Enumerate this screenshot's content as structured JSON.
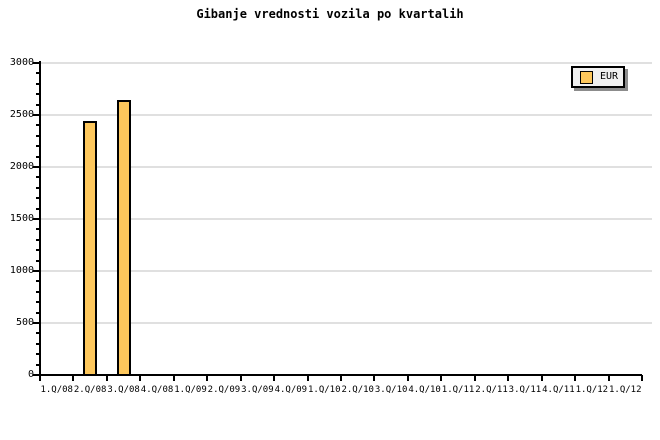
{
  "chart_data": {
    "type": "bar",
    "title": "Gibanje vrednosti vozila po kvartalih",
    "categories": [
      "1.Q/08",
      "2.Q/08",
      "3.Q/08",
      "4.Q/08",
      "1.Q/09",
      "2.Q/09",
      "3.Q/09",
      "4.Q/09",
      "1.Q/10",
      "2.Q/10",
      "3.Q/10",
      "4.Q/10",
      "1.Q/11",
      "2.Q/11",
      "3.Q/11",
      "4.Q/11",
      "1.Q/12",
      "1.Q/12"
    ],
    "series": [
      {
        "name": "EUR",
        "values": [
          null,
          2440,
          2640,
          null,
          null,
          null,
          null,
          null,
          null,
          null,
          null,
          null,
          null,
          null,
          null,
          null,
          null,
          null
        ]
      }
    ],
    "xlabel": "",
    "ylabel": "",
    "ylim": [
      0,
      3000
    ],
    "ytick_major_step": 500,
    "ytick_minor_step": 100,
    "grid": "horizontal-major",
    "legend": {
      "position": "top-right",
      "entries": [
        {
          "label": "EUR",
          "swatch_color": "#FDC75C"
        }
      ]
    },
    "colors": {
      "background": "#FFFFFF",
      "bar_fill": "#FDC75C",
      "bar_border": "#000000",
      "grid_line": "#E0E0E0",
      "axis_line": "#000000",
      "text": "#000000",
      "legend_bg": "#F0F0F0",
      "legend_border": "#000000",
      "legend_shadow": "#8C8C8C"
    }
  }
}
